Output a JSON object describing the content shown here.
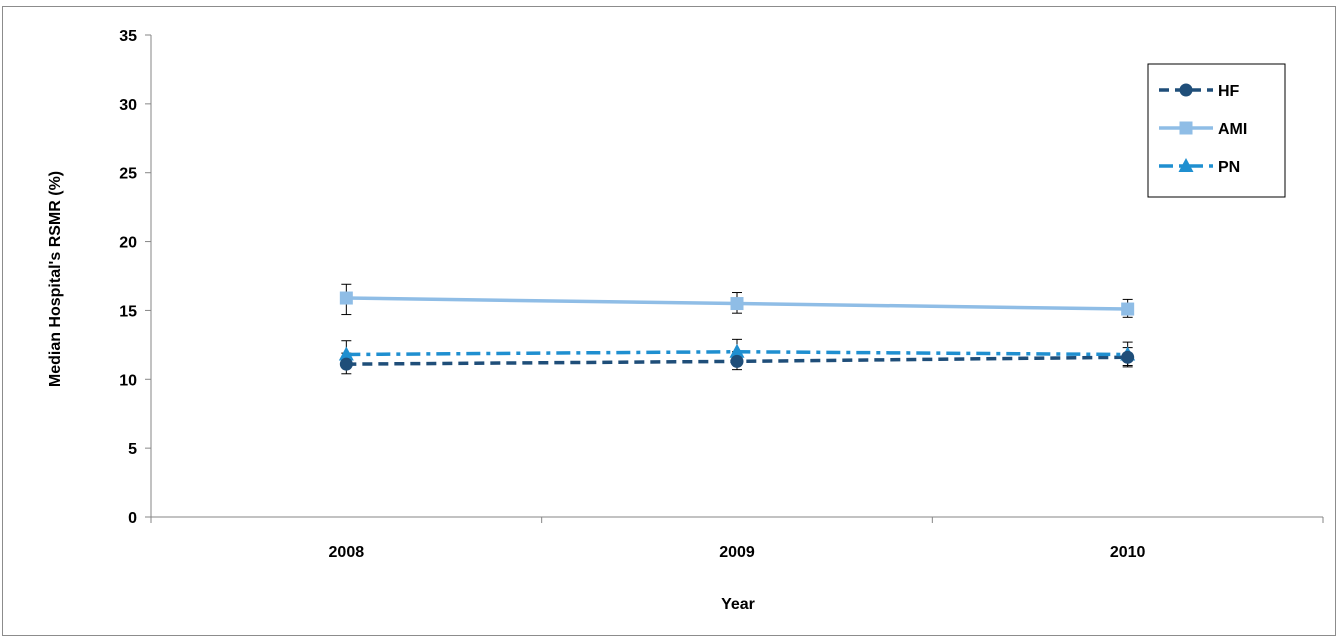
{
  "chart_data": {
    "type": "line",
    "title": "",
    "xlabel": "Year",
    "ylabel": "Median Hospital's RSMR (%)",
    "categories": [
      "2008",
      "2009",
      "2010"
    ],
    "ylim": [
      0,
      35
    ],
    "yticks": [
      0,
      5,
      10,
      15,
      20,
      25,
      30,
      35
    ],
    "grid": false,
    "legend_position": "top-right",
    "series": [
      {
        "name": "HF",
        "values": [
          11.1,
          11.3,
          11.6
        ],
        "error_low": [
          10.4,
          10.7,
          10.9
        ],
        "error_high": [
          11.9,
          12.0,
          12.3
        ],
        "color": "#1f4e79",
        "line_style": "dashed",
        "marker": "circle"
      },
      {
        "name": "AMI",
        "values": [
          15.9,
          15.5,
          15.1
        ],
        "error_low": [
          14.7,
          14.8,
          14.5
        ],
        "error_high": [
          16.9,
          16.3,
          15.8
        ],
        "color": "#8fbde6",
        "line_style": "solid",
        "marker": "square"
      },
      {
        "name": "PN",
        "values": [
          11.8,
          12.0,
          11.8
        ],
        "error_low": [
          10.9,
          11.2,
          11.0
        ],
        "error_high": [
          12.8,
          12.9,
          12.7
        ],
        "color": "#1f8fd0",
        "line_style": "dash-dot",
        "marker": "triangle"
      }
    ]
  }
}
